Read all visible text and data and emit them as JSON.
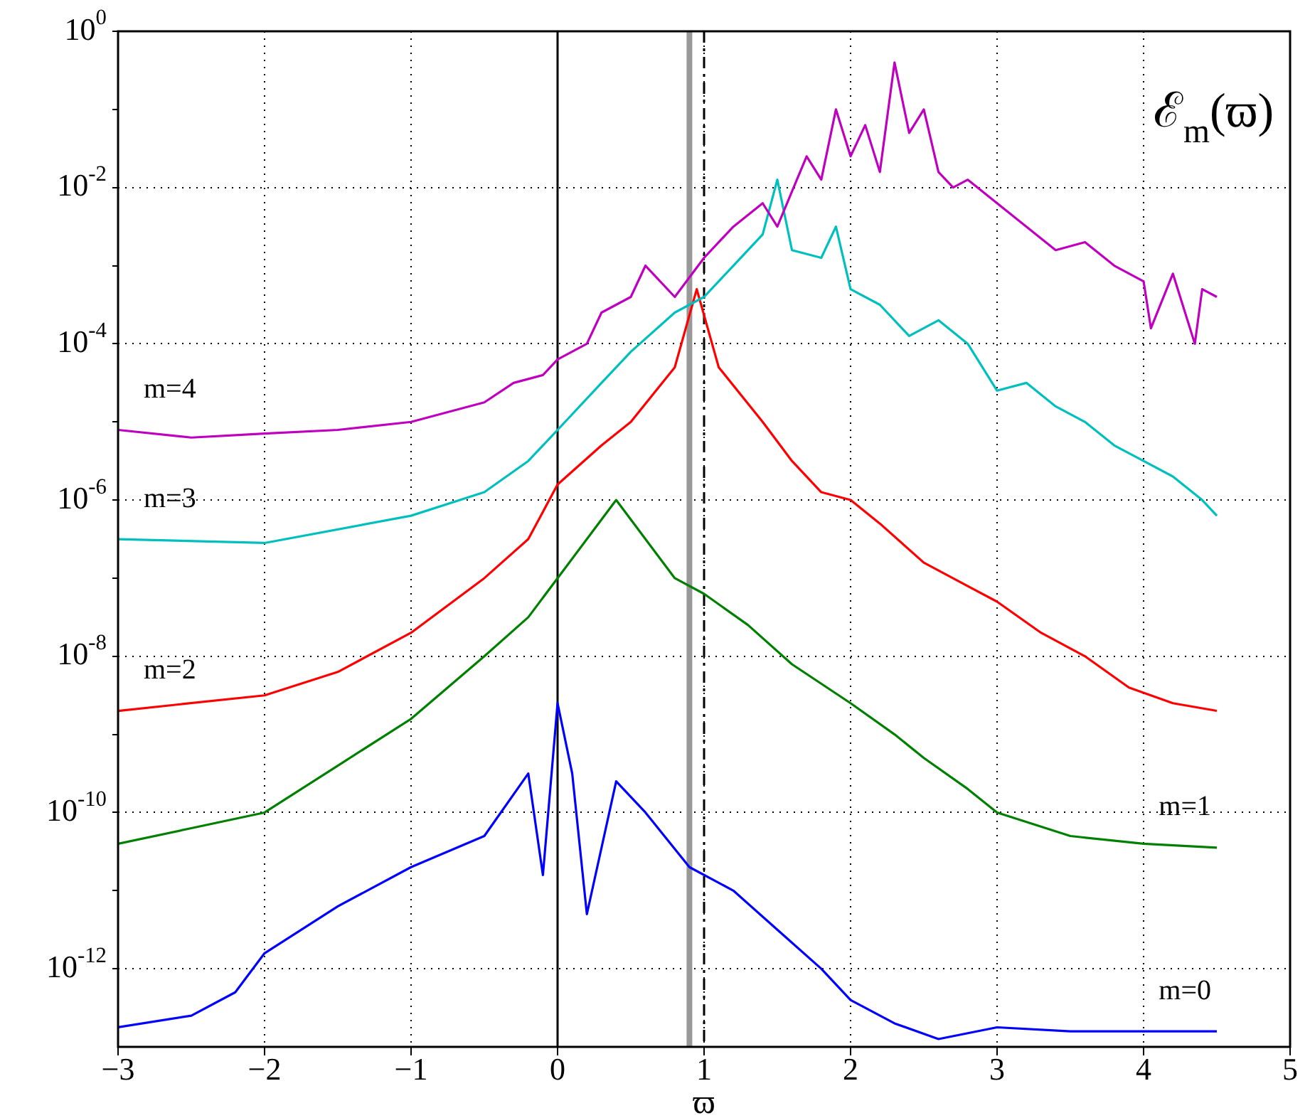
{
  "chart_data": {
    "type": "line",
    "xlabel": "ϖ",
    "log": "y",
    "grid": true,
    "marker": "none",
    "line_style": "solid",
    "legend": false,
    "xlim": [
      -3,
      5
    ],
    "xticks": [
      -3,
      -2,
      -1,
      0,
      1,
      2,
      3,
      4,
      5
    ],
    "ylim": [
      1e-13,
      1
    ],
    "yticks": [
      {
        "value": 1,
        "label": "10$^{0}$"
      },
      {
        "value": 0.1,
        "label": null
      },
      {
        "value": 0.01,
        "label": "10$^{-2}$"
      },
      {
        "value": 0.001,
        "label": null
      },
      {
        "value": 0.0001,
        "label": "10$^{-4}$"
      },
      {
        "value": 1e-05,
        "label": null
      },
      {
        "value": 1e-06,
        "label": "10$^{-6}$"
      },
      {
        "value": 1e-07,
        "label": null
      },
      {
        "value": 1e-08,
        "label": "10$^{-8}$"
      },
      {
        "value": 1e-09,
        "label": null
      },
      {
        "value": 1e-10,
        "label": "10$^{-10}$"
      },
      {
        "value": 1e-11,
        "label": null
      },
      {
        "value": 1e-12,
        "label": "10$^{-12}$"
      }
    ],
    "series": [
      {
        "name": "m=4",
        "color": "#bf00bf",
        "x": [
          -3,
          -2.5,
          -2,
          -1.5,
          -1,
          -0.8,
          -0.5,
          -0.3,
          -0.1,
          0,
          0.2,
          0.3,
          0.5,
          0.6,
          0.8,
          1,
          1.2,
          1.4,
          1.5,
          1.7,
          1.8,
          1.9,
          2.0,
          2.1,
          2.2,
          2.3,
          2.4,
          2.5,
          2.6,
          2.7,
          2.8,
          3.0,
          3.2,
          3.4,
          3.6,
          3.8,
          4.0,
          4.05,
          4.2,
          4.35,
          4.4,
          4.5
        ],
        "values": [
          7.9e-06,
          6.3e-06,
          7.1e-06,
          7.9e-06,
          1e-05,
          1.26e-05,
          1.78e-05,
          3.16e-05,
          3.98e-05,
          6.3e-05,
          0.0001,
          0.000251,
          0.000398,
          0.001,
          0.000398,
          0.00126,
          0.00316,
          0.0063,
          0.00316,
          0.0251,
          0.0126,
          0.1,
          0.0251,
          0.063,
          0.0158,
          0.398,
          0.0501,
          0.1,
          0.0158,
          0.01,
          0.0126,
          0.0063,
          0.00316,
          0.00158,
          0.002,
          0.001,
          0.00063,
          0.000158,
          0.00079,
          0.0001,
          0.0005,
          0.000398
        ]
      },
      {
        "name": "m=3",
        "color": "#00bfbf",
        "x": [
          -3,
          -2,
          -1,
          -0.5,
          -0.2,
          0,
          0.3,
          0.5,
          0.8,
          1.0,
          1.2,
          1.4,
          1.5,
          1.6,
          1.8,
          1.9,
          2.0,
          2.2,
          2.4,
          2.6,
          2.8,
          3.0,
          3.2,
          3.4,
          3.6,
          3.8,
          4.0,
          4.2,
          4.4,
          4.5
        ],
        "values": [
          3.16e-07,
          2.82e-07,
          6.3e-07,
          1.26e-06,
          3.16e-06,
          7.9e-06,
          3.16e-05,
          7.9e-05,
          0.000251,
          0.000398,
          0.001,
          0.00251,
          0.0126,
          0.00158,
          0.00126,
          0.00316,
          0.0005,
          0.000316,
          0.000126,
          0.0002,
          0.0001,
          2.51e-05,
          3.16e-05,
          1.58e-05,
          1e-05,
          5e-06,
          3.16e-06,
          2e-06,
          1e-06,
          6.3e-07
        ]
      },
      {
        "name": "m=2",
        "color": "#ff0000",
        "x": [
          -3,
          -2,
          -1.5,
          -1,
          -0.5,
          -0.2,
          0,
          0.3,
          0.5,
          0.8,
          0.95,
          1.1,
          1.4,
          1.6,
          1.8,
          2.0,
          2.2,
          2.5,
          2.8,
          3.0,
          3.3,
          3.6,
          3.9,
          4.2,
          4.5
        ],
        "values": [
          2e-09,
          3.16e-09,
          6.3e-09,
          2e-08,
          1e-07,
          3.16e-07,
          1.58e-06,
          5e-06,
          1e-05,
          5e-05,
          0.0005,
          5e-05,
          1e-05,
          3.16e-06,
          1.26e-06,
          1e-06,
          5e-07,
          1.58e-07,
          7.9e-08,
          5e-08,
          2e-08,
          1e-08,
          3.98e-09,
          2.51e-09,
          2e-09
        ]
      },
      {
        "name": "m=1",
        "color": "#008000",
        "x": [
          -3,
          -2.5,
          -2,
          -1.5,
          -1,
          -0.5,
          -0.2,
          0,
          0.2,
          0.4,
          0.6,
          0.8,
          1.0,
          1.3,
          1.6,
          2.0,
          2.3,
          2.5,
          2.8,
          3.0,
          3.5,
          4.0,
          4.5
        ],
        "values": [
          3.98e-11,
          6.3e-11,
          1e-10,
          3.98e-10,
          1.58e-09,
          1e-08,
          3.16e-08,
          1e-07,
          3.16e-07,
          1e-06,
          3.16e-07,
          1e-07,
          6.3e-08,
          2.51e-08,
          7.9e-09,
          2.51e-09,
          1e-09,
          5e-10,
          2e-10,
          1e-10,
          5e-11,
          3.98e-11,
          3.55e-11
        ]
      },
      {
        "name": "m=0",
        "color": "#0000ff",
        "x": [
          -3,
          -2.5,
          -2.2,
          -2,
          -1.5,
          -1,
          -0.5,
          -0.2,
          -0.1,
          0,
          0.1,
          0.2,
          0.4,
          0.6,
          0.9,
          1.2,
          1.5,
          1.8,
          2.0,
          2.3,
          2.6,
          3.0,
          3.5,
          4.0,
          4.5
        ],
        "values": [
          1.78e-13,
          2.51e-13,
          5e-13,
          1.58e-12,
          6.3e-12,
          2e-11,
          5e-11,
          3.16e-10,
          1.58e-11,
          2.51e-09,
          3.16e-10,
          5e-12,
          2.51e-10,
          1e-10,
          2e-11,
          1e-11,
          3.16e-12,
          1e-12,
          3.98e-13,
          2e-13,
          1.26e-13,
          1.78e-13,
          1.58e-13,
          1.58e-13,
          1.58e-13
        ]
      }
    ],
    "ref_lines": [
      {
        "axis": "x",
        "value": 0,
        "color": "#000000",
        "line_style": "solid"
      },
      {
        "axis": "x",
        "value": 0.9,
        "color": "#999999",
        "line_style": "solid"
      },
      {
        "axis": "x",
        "value": 1,
        "color": "#000000",
        "line_style": "dashed"
      }
    ],
    "annotations": [
      "ℰ$_{m}$(ϖ)"
    ]
  }
}
